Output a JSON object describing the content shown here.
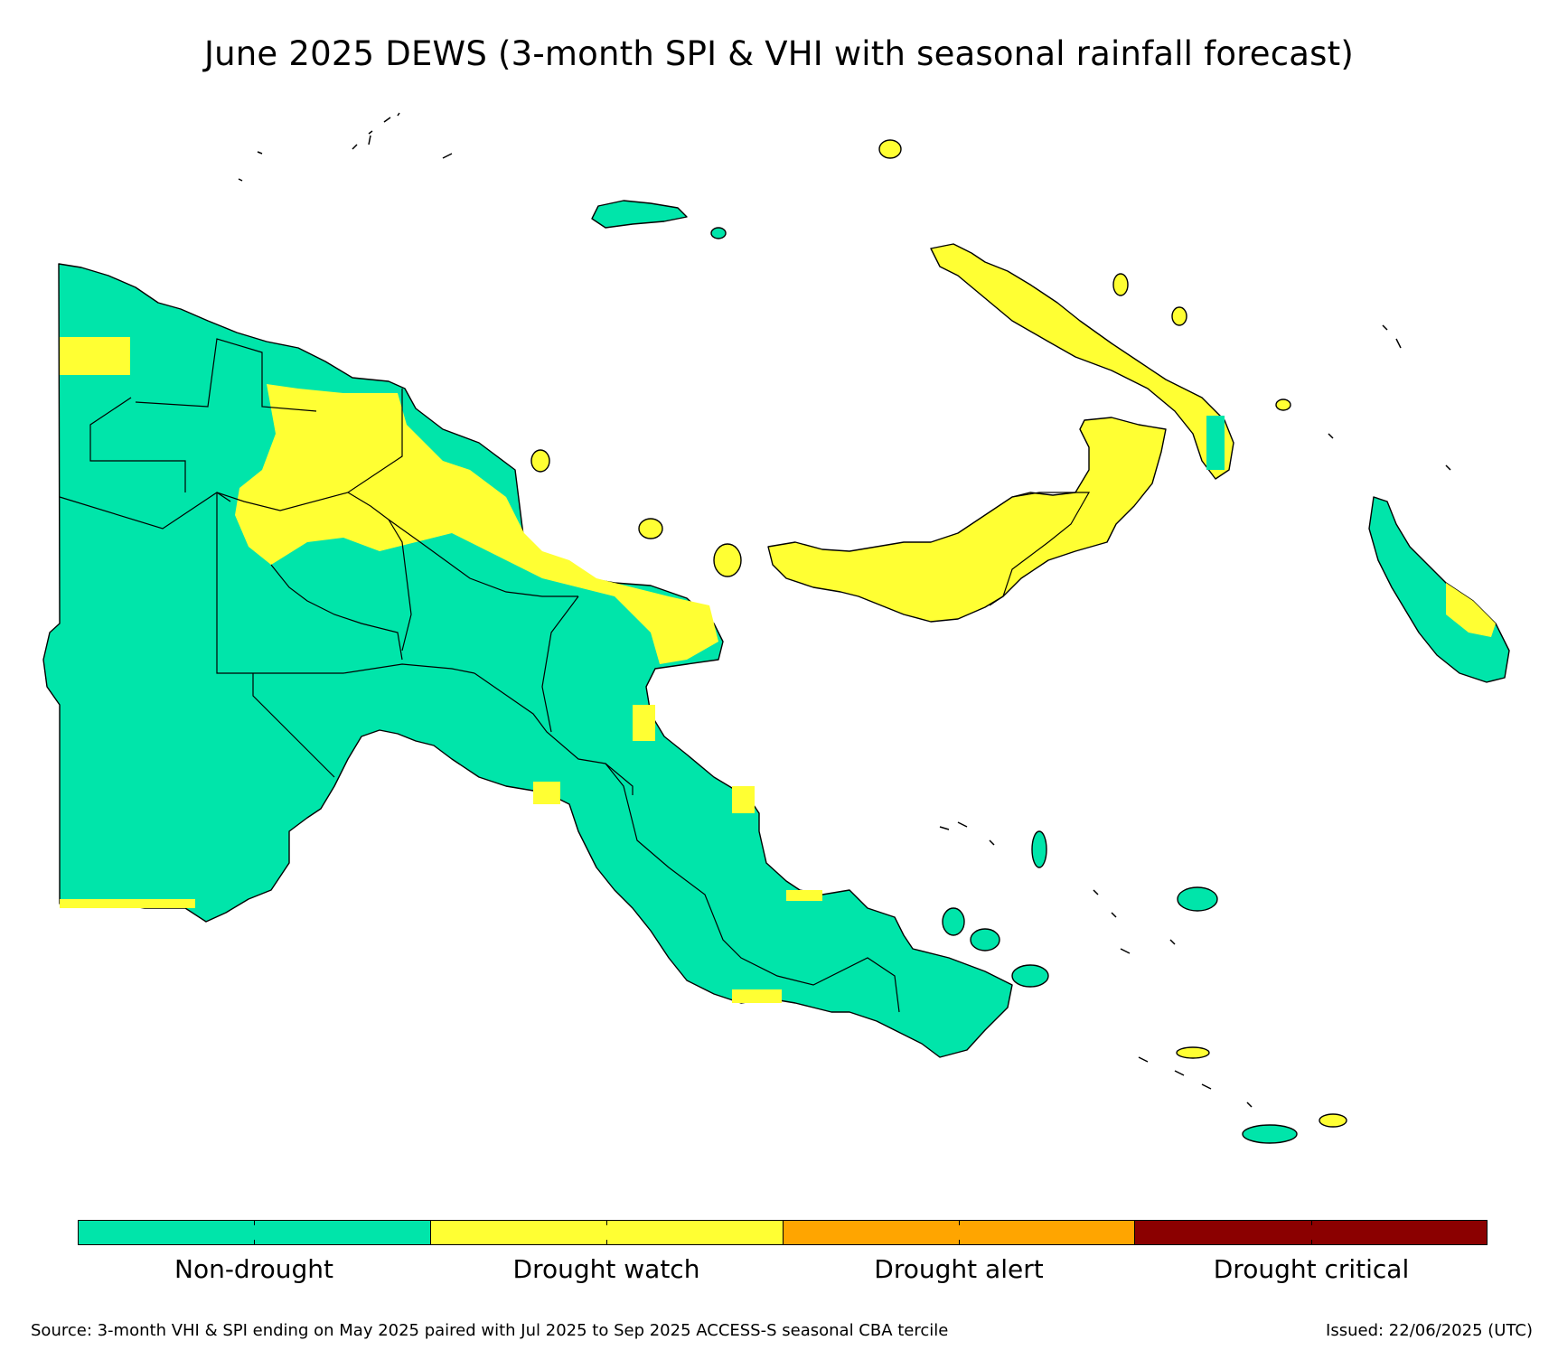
{
  "title": "June 2025 DEWS (3-month SPI & VHI with seasonal rainfall forecast)",
  "legend": [
    {
      "label": "Non-drought",
      "color": "#00e5aa"
    },
    {
      "label": "Drought watch",
      "color": "#ffff33"
    },
    {
      "label": "Drought alert",
      "color": "#ffa500"
    },
    {
      "label": "Drought critical",
      "color": "#8b0000"
    }
  ],
  "footer": {
    "source": "Source: 3-month VHI & SPI ending on May 2025 paired with Jul 2025 to Sep 2025 ACCESS-S seasonal CBA tercile",
    "issued": "Issued: 22/06/2025 (UTC)"
  }
}
